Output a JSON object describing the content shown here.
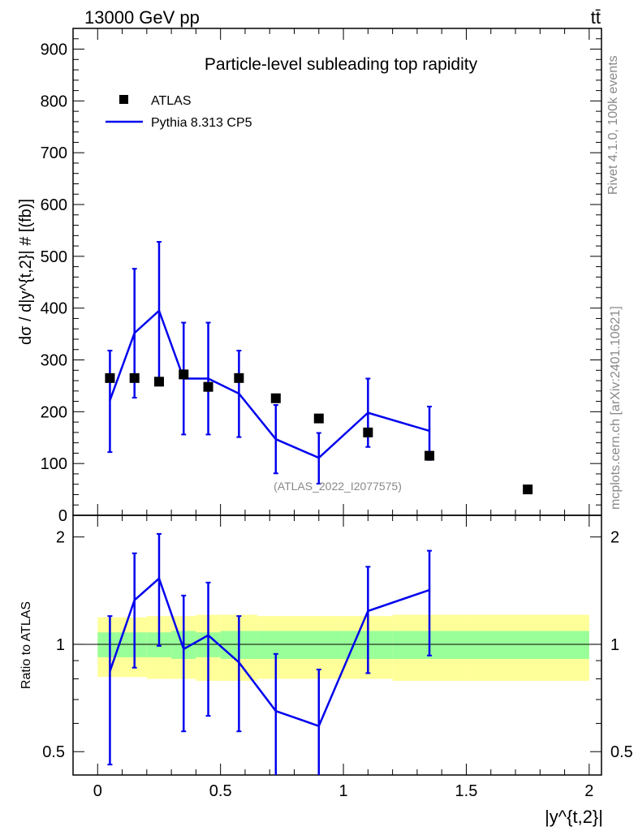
{
  "header": {
    "energy_label": "13000 GeV pp",
    "process_label": "tt̄"
  },
  "side_labels": {
    "rivet": "Rivet 4.1.0,  100k events",
    "mcplots": "mcplots.cern.ch [arXiv:2401.10621]"
  },
  "chart_data": {
    "type": "scatter",
    "title": "Particle-level subleading top rapidity",
    "watermark": "(ATLAS_2022_I2077575)",
    "xlabel": "|y^{t,2}|",
    "ylabel": "dσ / d|y^{t,2}| # [(fb)]",
    "ylabel_ratio": "Ratio to ATLAS",
    "xlim": [
      -0.1,
      2.05
    ],
    "ylim": [
      0,
      940
    ],
    "ratio_ylim": [
      0.43,
      2.3
    ],
    "x_ticks": [
      "0",
      "0.5",
      "1",
      "1.5",
      "2"
    ],
    "y_ticks": [
      "0",
      "100",
      "200",
      "300",
      "400",
      "500",
      "600",
      "700",
      "800",
      "900"
    ],
    "ratio_ticks": [
      "0.5",
      "1",
      "2"
    ],
    "legend": {
      "position": "top-left",
      "entries": [
        "ATLAS",
        "Pythia 8.313 CP5"
      ]
    },
    "bins": [
      0,
      0.1,
      0.2,
      0.3,
      0.4,
      0.5,
      0.65,
      0.8,
      1.0,
      1.2,
      1.5,
      2.0
    ],
    "atlas": {
      "name": "ATLAS",
      "x": [
        0.05,
        0.15,
        0.25,
        0.35,
        0.45,
        0.575,
        0.725,
        0.9,
        1.1,
        1.35,
        1.75
      ],
      "y": [
        265,
        265,
        258,
        272,
        248,
        265,
        226,
        187,
        160,
        115,
        50
      ],
      "rel_err_stat": [
        0.08,
        0.08,
        0.08,
        0.09,
        0.08,
        0.09,
        0.09,
        0.09,
        0.09,
        0.09,
        0.09
      ],
      "rel_err_total": [
        0.19,
        0.19,
        0.2,
        0.2,
        0.21,
        0.21,
        0.2,
        0.2,
        0.2,
        0.21,
        0.21
      ]
    },
    "pythia": {
      "name": "Pythia 8.313 CP5",
      "color": "#0000ee",
      "x": [
        0.05,
        0.15,
        0.25,
        0.35,
        0.45,
        0.575,
        0.725,
        0.9,
        1.1,
        1.35
      ],
      "y": [
        222,
        352,
        395,
        264,
        264,
        235,
        147,
        111,
        198,
        163
      ],
      "err_low": [
        100,
        125,
        140,
        108,
        108,
        84,
        66,
        50,
        66,
        56
      ],
      "err_high": [
        96,
        124,
        133,
        108,
        108,
        83,
        66,
        48,
        66,
        47
      ]
    },
    "ratio": {
      "y": [
        0.84,
        1.33,
        1.53,
        0.97,
        1.06,
        0.89,
        0.65,
        0.59,
        1.24,
        1.42
      ],
      "err_low": [
        0.38,
        0.47,
        0.54,
        0.4,
        0.43,
        0.32,
        0.29,
        0.27,
        0.41,
        0.49
      ],
      "err_high": [
        0.36,
        0.47,
        0.51,
        0.4,
        0.43,
        0.31,
        0.29,
        0.26,
        0.41,
        0.41
      ]
    },
    "colors": {
      "stat_band": "#99ff99",
      "total_band": "#ffff99",
      "mc_line": "#0000ee",
      "data_marker": "#000000"
    }
  }
}
